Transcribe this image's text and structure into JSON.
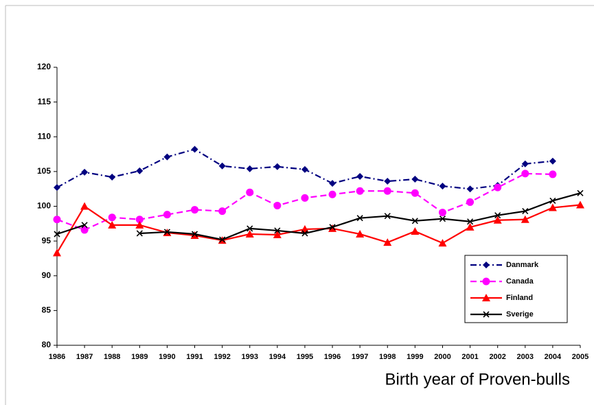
{
  "chart_data": {
    "type": "line",
    "xlabel": "Birth year of Proven-bulls",
    "categories": [
      "1986",
      "1987",
      "1988",
      "1989",
      "1990",
      "1991",
      "1992",
      "1993",
      "1994",
      "1995",
      "1996",
      "1997",
      "1998",
      "1999",
      "2000",
      "2001",
      "2002",
      "2003",
      "2004",
      "2005"
    ],
    "series": [
      {
        "name": "Danmark",
        "color": "#000080",
        "dash": "dashdot",
        "marker": "diamond",
        "values": [
          102.7,
          104.9,
          104.2,
          105.1,
          107.1,
          108.2,
          105.8,
          105.4,
          105.7,
          105.3,
          103.3,
          104.3,
          103.6,
          103.9,
          102.9,
          102.5,
          103.0,
          106.1,
          106.5,
          null
        ]
      },
      {
        "name": "Canada",
        "color": "#ff00ff",
        "dash": "dash",
        "marker": "circle",
        "values": [
          98.1,
          96.6,
          98.4,
          98.1,
          98.8,
          99.5,
          99.3,
          102.0,
          100.1,
          101.2,
          101.7,
          102.2,
          102.2,
          101.9,
          99.1,
          100.6,
          102.7,
          104.7,
          104.6,
          null
        ]
      },
      {
        "name": "Finland",
        "color": "#ff0000",
        "dash": "solid",
        "marker": "triangle",
        "values": [
          93.3,
          100.0,
          97.3,
          97.3,
          96.2,
          95.8,
          95.1,
          96.0,
          95.9,
          96.7,
          96.8,
          96.0,
          94.8,
          96.4,
          94.7,
          97.0,
          98.0,
          98.1,
          99.8,
          100.2
        ]
      },
      {
        "name": "Sverige",
        "color": "#000000",
        "dash": "solid",
        "marker": "x",
        "values": [
          96.0,
          97.3,
          null,
          96.1,
          96.3,
          96.0,
          95.2,
          96.8,
          96.5,
          96.1,
          97.0,
          98.3,
          98.6,
          97.9,
          98.2,
          97.8,
          98.7,
          99.3,
          100.8,
          101.9
        ]
      }
    ],
    "ylim": [
      80,
      120
    ],
    "yticks": [
      80,
      85,
      90,
      95,
      100,
      105,
      110,
      115,
      120
    ],
    "grid": false,
    "legend": "lower-right"
  }
}
